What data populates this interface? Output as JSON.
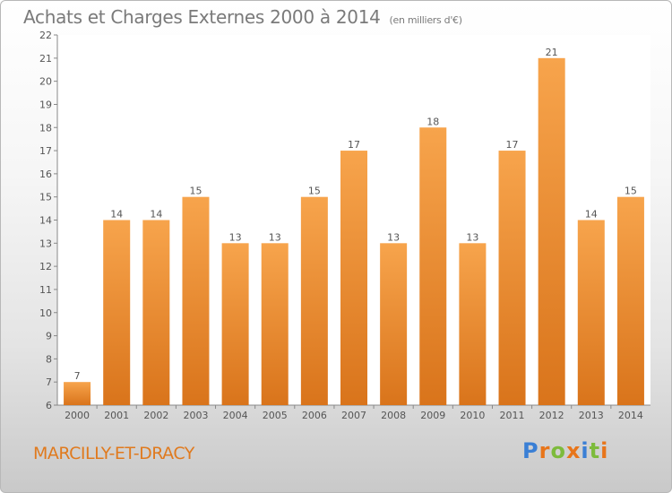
{
  "header": {
    "title": "Achats et Charges Externes 2000 à 2014",
    "subtitle": "(en milliers d'€)"
  },
  "footer": {
    "commune": "MARCILLY-ET-DRACY",
    "logo": "Proxiti"
  },
  "colors": {
    "bar_top": "#f7a44c",
    "bar_bottom": "#d9741b",
    "commune": "#e07a1e",
    "logo_letters": [
      "#3a7fd5",
      "#e8751a",
      "#7dbb3c",
      "#e8751a",
      "#3a7fd5",
      "#7dbb3c",
      "#e8751a"
    ]
  },
  "chart_data": {
    "type": "bar",
    "categories": [
      "2000",
      "2001",
      "2002",
      "2003",
      "2004",
      "2005",
      "2006",
      "2007",
      "2008",
      "2009",
      "2010",
      "2011",
      "2012",
      "2013",
      "2014"
    ],
    "values": [
      7,
      14,
      14,
      15,
      13,
      13,
      15,
      17,
      13,
      18,
      13,
      17,
      21,
      14,
      15
    ],
    "ylim": [
      6,
      22
    ],
    "yticks": [
      6,
      7,
      8,
      9,
      10,
      11,
      12,
      13,
      14,
      15,
      16,
      17,
      18,
      19,
      20,
      21,
      22
    ],
    "grid": false,
    "legend": "none"
  }
}
